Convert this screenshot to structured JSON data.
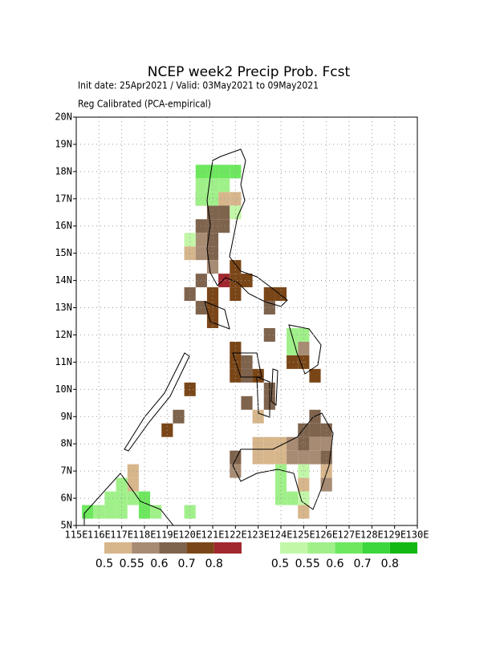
{
  "chart_data": {
    "type": "gridmap",
    "title": "NCEP week2 Precip Prob. Fcst",
    "subtitle": "Init date: 25Apr2021 / Valid: 03May2021 to 09May2021",
    "note": "Reg Calibrated (PCA-empirical)",
    "xlim": [
      115,
      130
    ],
    "ylim": [
      5,
      20
    ],
    "cell_size": 0.5,
    "grid": true,
    "xticks": [
      {
        "value": 115,
        "label": "115E"
      },
      {
        "value": 116,
        "label": "116E"
      },
      {
        "value": 117,
        "label": "117E"
      },
      {
        "value": 118,
        "label": "118E"
      },
      {
        "value": 119,
        "label": "119E"
      },
      {
        "value": 120,
        "label": "120E"
      },
      {
        "value": 121,
        "label": "121E"
      },
      {
        "value": 122,
        "label": "122E"
      },
      {
        "value": 123,
        "label": "123E"
      },
      {
        "value": 124,
        "label": "124E"
      },
      {
        "value": 125,
        "label": "125E"
      },
      {
        "value": 126,
        "label": "126E"
      },
      {
        "value": 127,
        "label": "127E"
      },
      {
        "value": 128,
        "label": "128E"
      },
      {
        "value": 129,
        "label": "129E"
      },
      {
        "value": 130,
        "label": "130E"
      }
    ],
    "yticks": [
      {
        "value": 5,
        "label": "5N"
      },
      {
        "value": 6,
        "label": "6N"
      },
      {
        "value": 7,
        "label": "7N"
      },
      {
        "value": 8,
        "label": "8N"
      },
      {
        "value": 9,
        "label": "9N"
      },
      {
        "value": 10,
        "label": "10N"
      },
      {
        "value": 11,
        "label": "11N"
      },
      {
        "value": 12,
        "label": "12N"
      },
      {
        "value": 13,
        "label": "13N"
      },
      {
        "value": 14,
        "label": "14N"
      },
      {
        "value": 15,
        "label": "15N"
      },
      {
        "value": 16,
        "label": "16N"
      },
      {
        "value": 17,
        "label": "17N"
      },
      {
        "value": 18,
        "label": "18N"
      },
      {
        "value": 19,
        "label": "19N"
      },
      {
        "value": 20,
        "label": "20N"
      }
    ],
    "legend": {
      "dry": {
        "levels": [
          0.5,
          0.55,
          0.6,
          0.7,
          0.8
        ],
        "colors": [
          "#d7b68c",
          "#a88b73",
          "#7e634d",
          "#7a4617",
          "#a1282e"
        ]
      },
      "wet": {
        "levels": [
          0.5,
          0.55,
          0.6,
          0.7,
          0.8
        ],
        "colors": [
          "#c2f7a8",
          "#a0f08a",
          "#6de85e",
          "#3cd73c",
          "#13b813"
        ]
      }
    },
    "cells": {
      "dry": [
        [
          121.5,
          17,
          0.5
        ],
        [
          122,
          17,
          0.5
        ],
        [
          120.5,
          17,
          0.6
        ],
        [
          121,
          16.5,
          0.6
        ],
        [
          121.5,
          16.5,
          0.6
        ],
        [
          120.5,
          16,
          0.6
        ],
        [
          121,
          16,
          0.6
        ],
        [
          121.5,
          16,
          0.6
        ],
        [
          120.5,
          15.5,
          0.55
        ],
        [
          121,
          15.5,
          0.6
        ],
        [
          120,
          15,
          0.5
        ],
        [
          120.5,
          15,
          0.55
        ],
        [
          121,
          15,
          0.6
        ],
        [
          121,
          14.5,
          0.55
        ],
        [
          122,
          14.5,
          0.7
        ],
        [
          122,
          14,
          0.7
        ],
        [
          122.5,
          14,
          0.7
        ],
        [
          121.5,
          14,
          0.8
        ],
        [
          120.5,
          14,
          0.6
        ],
        [
          120,
          13.5,
          0.6
        ],
        [
          120.5,
          13,
          0.6
        ],
        [
          121,
          13.5,
          0.7
        ],
        [
          121,
          13,
          0.7
        ],
        [
          121,
          12.5,
          0.7
        ],
        [
          122,
          13.5,
          0.7
        ],
        [
          123.5,
          13.5,
          0.7
        ],
        [
          124,
          13.5,
          0.7
        ],
        [
          123.5,
          13,
          0.6
        ],
        [
          123.5,
          12,
          0.6
        ],
        [
          122,
          11.5,
          0.7
        ],
        [
          122,
          11,
          0.7
        ],
        [
          122.5,
          11,
          0.6
        ],
        [
          122,
          10.5,
          0.7
        ],
        [
          122.5,
          10.5,
          0.6
        ],
        [
          123,
          10.5,
          0.7
        ],
        [
          123.5,
          10,
          0.6
        ],
        [
          122.5,
          9.5,
          0.6
        ],
        [
          123.5,
          9.5,
          0.6
        ],
        [
          123,
          9,
          0.5
        ],
        [
          120,
          10,
          0.7
        ],
        [
          119.5,
          9,
          0.6
        ],
        [
          119,
          8.5,
          0.7
        ],
        [
          124.5,
          11,
          0.7
        ],
        [
          125,
          11,
          0.7
        ],
        [
          125,
          11.5,
          0.55
        ],
        [
          125.5,
          10.5,
          0.7
        ],
        [
          125.5,
          9,
          0.6
        ],
        [
          125,
          8.5,
          0.6
        ],
        [
          125.5,
          8.5,
          0.6
        ],
        [
          126,
          8.5,
          0.6
        ],
        [
          123,
          8,
          0.5
        ],
        [
          123.5,
          8,
          0.5
        ],
        [
          124,
          8,
          0.5
        ],
        [
          124.5,
          8,
          0.55
        ],
        [
          125,
          8,
          0.6
        ],
        [
          125.5,
          8,
          0.55
        ],
        [
          126,
          8,
          0.55
        ],
        [
          123,
          7.5,
          0.5
        ],
        [
          123.5,
          7.5,
          0.5
        ],
        [
          124,
          7.5,
          0.5
        ],
        [
          124.5,
          7.5,
          0.55
        ],
        [
          125,
          7.5,
          0.55
        ],
        [
          125.5,
          7.5,
          0.55
        ],
        [
          126,
          7.5,
          0.6
        ],
        [
          122,
          7.5,
          0.6
        ],
        [
          122,
          7,
          0.55
        ],
        [
          126,
          7,
          0.5
        ],
        [
          125,
          6.5,
          0.5
        ],
        [
          126,
          6.5,
          0.55
        ],
        [
          117.5,
          7,
          0.5
        ],
        [
          117.5,
          6.5,
          0.5
        ],
        [
          125,
          5.5,
          0.5
        ]
      ],
      "wet": [
        [
          120.5,
          18,
          0.6
        ],
        [
          121,
          18,
          0.6
        ],
        [
          121.5,
          18,
          0.6
        ],
        [
          122,
          18,
          0.6
        ],
        [
          120.5,
          17.5,
          0.55
        ],
        [
          121,
          17.5,
          0.55
        ],
        [
          121.5,
          17.5,
          0.55
        ],
        [
          120.5,
          17,
          0.55
        ],
        [
          121,
          17,
          0.55
        ],
        [
          122,
          16.5,
          0.5
        ],
        [
          120,
          15.5,
          0.5
        ],
        [
          124.5,
          12,
          0.55
        ],
        [
          125,
          12,
          0.55
        ],
        [
          124.5,
          11.5,
          0.55
        ],
        [
          124,
          7,
          0.55
        ],
        [
          124,
          6.5,
          0.55
        ],
        [
          124,
          6,
          0.55
        ],
        [
          124.5,
          6,
          0.55
        ],
        [
          125,
          7,
          0.5
        ],
        [
          125,
          6,
          0.5
        ],
        [
          117,
          6.5,
          0.55
        ],
        [
          117,
          6,
          0.55
        ],
        [
          116.5,
          6,
          0.55
        ],
        [
          117.5,
          6,
          0.55
        ],
        [
          116.5,
          5.5,
          0.55
        ],
        [
          116,
          5.5,
          0.55
        ],
        [
          117,
          5.5,
          0.55
        ],
        [
          118,
          5.5,
          0.6
        ],
        [
          118.5,
          5.5,
          0.55
        ],
        [
          118,
          6,
          0.6
        ],
        [
          120,
          5.5,
          0.55
        ],
        [
          115.5,
          5.5,
          0.6
        ]
      ]
    }
  }
}
